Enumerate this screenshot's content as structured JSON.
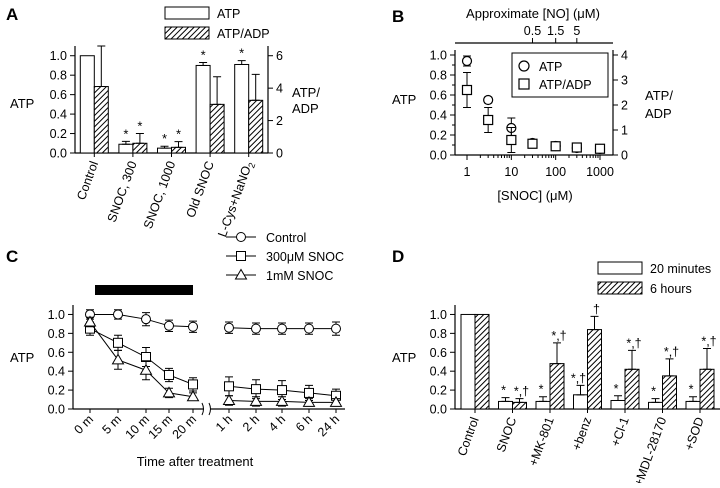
{
  "panel_labels": [
    "A",
    "B",
    "C",
    "D"
  ],
  "chart_data": [
    {
      "panel": "A",
      "type": "bar",
      "categories": [
        "Control",
        "SNOC, 300",
        "SNOC, 1000",
        "Old SNOC",
        "L-Cys+NaNO2"
      ],
      "category_label_parts": [
        [
          "Control",
          ""
        ],
        [
          "SNOC, 300",
          ""
        ],
        [
          "SNOC, 1000",
          ""
        ],
        [
          "Old SNOC",
          ""
        ],
        [
          "L-Cys+NaNO",
          "2"
        ]
      ],
      "series": [
        {
          "name": "ATP",
          "axis": "left",
          "values": [
            1.0,
            0.09,
            0.05,
            0.9,
            0.91
          ],
          "errors": [
            0,
            0.03,
            0.02,
            0.03,
            0.04
          ],
          "stars": [
            false,
            true,
            true,
            true,
            true
          ]
        },
        {
          "name": "ATP/ADP",
          "axis": "right",
          "values": [
            4.1,
            0.6,
            0.35,
            3.0,
            3.25
          ],
          "errors": [
            2.5,
            0.6,
            0.35,
            1.7,
            1.6
          ],
          "stars": [
            false,
            true,
            true,
            false,
            false
          ]
        }
      ],
      "ylabel": "ATP",
      "y2label": [
        "ATP/",
        "ADP"
      ],
      "ylim": [
        0,
        1.1
      ],
      "y2lim": [
        0,
        6.6
      ],
      "yticks": [
        "0.0",
        "0.2",
        "0.4",
        "0.6",
        "0.8",
        "1.0"
      ],
      "y2ticks": [
        "0",
        "2",
        "4",
        "6"
      ],
      "legend": "top"
    },
    {
      "panel": "B",
      "type": "scatter",
      "x": [
        1,
        3,
        10,
        30,
        100,
        300,
        1000
      ],
      "xscale": "log",
      "xticks": [
        "1",
        "10",
        "100",
        "1000"
      ],
      "xlabel": "[SNOC] (μM)",
      "top_axis_label": "Approximate [NO] (μM)",
      "top_ticks": [
        "0.5",
        "1.5",
        "5"
      ],
      "top_tick_positions_snoc": [
        30,
        100,
        300
      ],
      "series": [
        {
          "name": "ATP",
          "axis": "left",
          "marker": "circle",
          "values": [
            0.94,
            0.55,
            0.27,
            0.12,
            0.09,
            0.07,
            0.06
          ],
          "errors": [
            0.05,
            0.03,
            0.1,
            0.02,
            0.02,
            0.02,
            0.02
          ]
        },
        {
          "name": "ATP/ADP",
          "axis": "right",
          "marker": "square",
          "values": [
            2.6,
            1.4,
            0.6,
            0.45,
            0.35,
            0.3,
            0.25
          ],
          "errors": [
            0.7,
            0.5,
            0.5,
            0.15,
            0.1,
            0.08,
            0.08
          ]
        }
      ],
      "ylabel": "ATP",
      "y2label": [
        "ATP/",
        "ADP"
      ],
      "ylim": [
        0,
        1.05
      ],
      "y2lim": [
        0,
        4.2
      ],
      "yticks": [
        "0.0",
        "0.1",
        "0.2",
        "0.3",
        "0.4",
        "0.5",
        "0.6",
        "0.7",
        "0.8",
        "0.9",
        "1.0"
      ],
      "y2ticks": [
        "0",
        "1",
        "2",
        "3",
        "4"
      ],
      "legend": "top-right"
    },
    {
      "panel": "C",
      "type": "line",
      "categories": [
        "0 m",
        "5 m",
        "10 m",
        "15 m",
        "20 m",
        "1 h",
        "2 h",
        "4 h",
        "6 h",
        "24 h"
      ],
      "series": [
        {
          "name": "Control",
          "marker": "circle",
          "values": [
            1.0,
            1.0,
            0.95,
            0.88,
            0.87,
            0.86,
            0.85,
            0.85,
            0.85,
            0.85
          ],
          "errors": [
            0.05,
            0.05,
            0.07,
            0.06,
            0.06,
            0.06,
            0.06,
            0.06,
            0.06,
            0.07
          ]
        },
        {
          "name": "300μM SNOC",
          "marker": "square",
          "values": [
            0.85,
            0.7,
            0.55,
            0.36,
            0.26,
            0.24,
            0.21,
            0.2,
            0.17,
            0.14
          ],
          "errors": [
            0.07,
            0.08,
            0.1,
            0.07,
            0.07,
            0.1,
            0.1,
            0.1,
            0.08,
            0.07
          ]
        },
        {
          "name": "1mM SNOC",
          "marker": "triangle",
          "values": [
            0.92,
            0.52,
            0.41,
            0.17,
            0.13,
            0.09,
            0.08,
            0.08,
            0.07,
            0.07
          ],
          "errors": [
            0.05,
            0.1,
            0.1,
            0.05,
            0.04,
            0.05,
            0.05,
            0.05,
            0.04,
            0.04
          ]
        }
      ],
      "ylabel": "ATP",
      "xlabel": "Time after treatment",
      "ylim": [
        0,
        1.1
      ],
      "yticks": [
        "0.0",
        "0.2",
        "0.4",
        "0.6",
        "0.8",
        "1.0"
      ],
      "treatment_bar": {
        "from": "0 m",
        "to": "20 m"
      },
      "axis_break": "between 20 m and 1 h",
      "legend": "top-right"
    },
    {
      "panel": "D",
      "type": "bar",
      "categories": [
        "Control",
        "SNOC",
        "+MK-801",
        "+benz",
        "+Cl-1",
        "+MDL-28170",
        "+SOD"
      ],
      "series": [
        {
          "name": "20 minutes",
          "values": [
            1.0,
            0.08,
            0.08,
            0.15,
            0.09,
            0.07,
            0.08
          ],
          "errors": [
            0,
            0.04,
            0.05,
            0.1,
            0.05,
            0.04,
            0.05
          ],
          "marks": [
            "",
            "*",
            "*",
            "*,†",
            "*",
            "*",
            "*"
          ]
        },
        {
          "name": "6 hours",
          "values": [
            1.0,
            0.07,
            0.48,
            0.84,
            0.42,
            0.35,
            0.42
          ],
          "errors": [
            0,
            0.04,
            0.22,
            0.14,
            0.2,
            0.18,
            0.22
          ],
          "marks": [
            "",
            "*,†",
            "*,†",
            "†",
            "*,†",
            "*,†",
            "*,†"
          ]
        }
      ],
      "ylabel": "ATP",
      "ylim": [
        0,
        1.1
      ],
      "yticks": [
        "0.0",
        "0.2",
        "0.4",
        "0.6",
        "0.8",
        "1.0"
      ],
      "legend": "top-right"
    }
  ]
}
